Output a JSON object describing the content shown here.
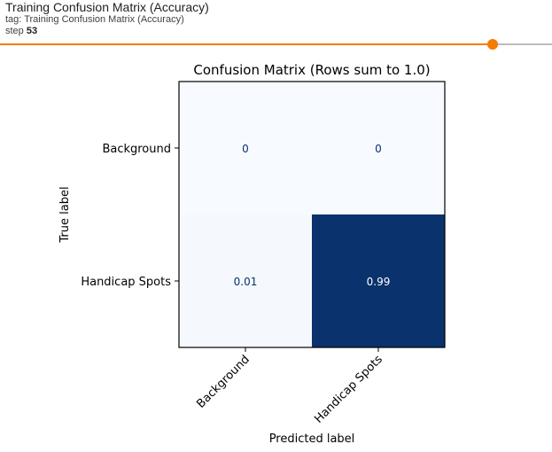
{
  "card": {
    "title": "Training Confusion Matrix (Accuracy)",
    "tag": "tag: Training Confusion Matrix (Accuracy)",
    "step_label": "step ",
    "step_value": "53"
  },
  "slider": {
    "value_fraction": 0.893,
    "accent_color": "#f57c00",
    "track_color": "#bdbdbd"
  },
  "chart_data": {
    "type": "heatmap",
    "title": "Confusion Matrix (Rows sum to 1.0)",
    "xlabel": "Predicted label",
    "ylabel": "True label",
    "x_categories": [
      "Background",
      "Handicap Spots"
    ],
    "y_categories": [
      "Background",
      "Handicap Spots"
    ],
    "values": [
      [
        0,
        0
      ],
      [
        0.01,
        0.99
      ]
    ],
    "value_labels": [
      [
        "0",
        "0"
      ],
      [
        "0.01",
        "0.99"
      ]
    ],
    "colormap": "Blues",
    "vmin": 0,
    "vmax": 1,
    "low_color": "#f7fbff",
    "high_color": "#08306b"
  }
}
